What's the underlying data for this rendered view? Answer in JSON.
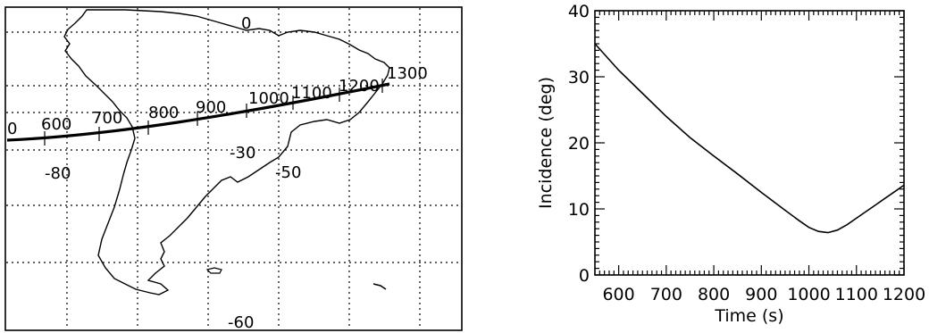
{
  "colors": {
    "ink": "#000000",
    "background": "#ffffff"
  },
  "chart_data": [
    {
      "type": "map",
      "grid": true,
      "grid_style": "dotted",
      "coordinate_labels": [
        "0",
        "-30",
        "-50",
        "-80",
        "-60"
      ],
      "track_labels": [
        "0",
        "600",
        "700",
        "800",
        "900",
        "1000",
        "1100",
        "1200",
        "1300"
      ],
      "track_ticks": [
        600,
        700,
        800,
        900,
        1000,
        1100,
        1200,
        1300
      ]
    },
    {
      "type": "line",
      "title": "",
      "xlabel": "Time (s)",
      "ylabel": "Incidence (deg)",
      "xlim": [
        550,
        1200
      ],
      "ylim": [
        0,
        40
      ],
      "xticks": [
        "600",
        "700",
        "800",
        "900",
        "1000",
        "1100",
        "1200"
      ],
      "yticks": [
        "0",
        "10",
        "20",
        "30",
        "40"
      ],
      "grid": false,
      "series": [
        {
          "x": [
            550,
            600,
            650,
            700,
            750,
            800,
            850,
            900,
            950,
            980,
            1000,
            1020,
            1040,
            1060,
            1080,
            1100,
            1120,
            1140,
            1160,
            1180,
            1200
          ],
          "y": [
            35.0,
            31.0,
            27.5,
            24.0,
            20.8,
            18.0,
            15.3,
            12.5,
            9.8,
            8.2,
            7.2,
            6.6,
            6.4,
            6.8,
            7.6,
            8.6,
            9.6,
            10.6,
            11.6,
            12.6,
            13.6
          ]
        }
      ]
    }
  ]
}
